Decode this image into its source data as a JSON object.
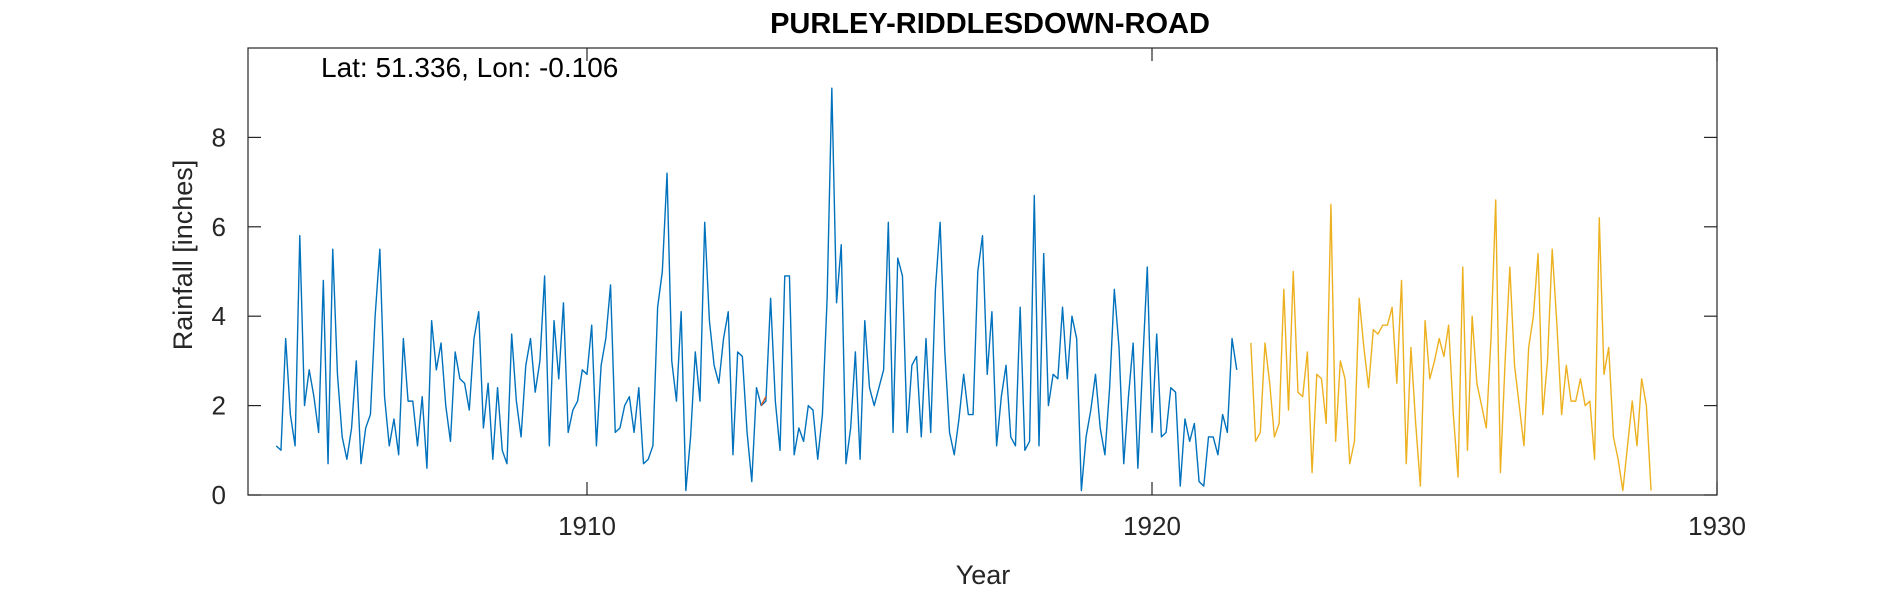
{
  "chart_data": {
    "type": "line",
    "title": "PURLEY-RIDDLESDOWN-ROAD",
    "annotation": "Lat: 51.336, Lon: -0.106",
    "xlabel": "Year",
    "ylabel": "Rainfall [inches]",
    "xlim": [
      1904,
      1930
    ],
    "ylim": [
      0,
      10
    ],
    "x_ticks": [
      1910,
      1920,
      1930
    ],
    "y_ticks": [
      0,
      2,
      4,
      6,
      8
    ],
    "grid": false,
    "colors": {
      "observed": "#0072BD",
      "extension": "#EDB120",
      "highlight": "#D95319",
      "axis": "#262626"
    },
    "series": [
      {
        "color": "#0072BD",
        "x_start": 1904.5,
        "x_step": 0.083333,
        "values": [
          1.1,
          1.0,
          3.5,
          1.8,
          1.1,
          5.8,
          2.0,
          2.8,
          2.2,
          1.4,
          4.8,
          0.7,
          5.5,
          2.7,
          1.3,
          0.8,
          1.5,
          3.0,
          0.7,
          1.5,
          1.8,
          4.0,
          5.5,
          2.2,
          1.1,
          1.7,
          0.9,
          3.5,
          2.1,
          2.1,
          1.1,
          2.2,
          0.6,
          3.9,
          2.8,
          3.4,
          2.0,
          1.2,
          3.2,
          2.6,
          2.5,
          1.9,
          3.5,
          4.1,
          1.5,
          2.5,
          0.8,
          2.4,
          1.0,
          0.7,
          3.6,
          2.1,
          1.3,
          2.9,
          3.5,
          2.3,
          3.0,
          4.9,
          1.1,
          3.9,
          2.6,
          4.3,
          1.4,
          1.9,
          2.1,
          2.8,
          2.7,
          3.8,
          1.1,
          2.9,
          3.5,
          4.7,
          1.4,
          1.5,
          2.0,
          2.2,
          1.4,
          2.4,
          0.7,
          0.8,
          1.1,
          4.2,
          5.0,
          7.2,
          3.0,
          2.1,
          4.1,
          0.1,
          1.3,
          3.2,
          2.1,
          6.1,
          3.9,
          2.9,
          2.5,
          3.5,
          4.1,
          0.9,
          3.2,
          3.1,
          1.4,
          0.3,
          2.4,
          2.0,
          2.1,
          4.4,
          2.1,
          1.0,
          4.9,
          4.9,
          0.9,
          1.5,
          1.2,
          2.0,
          1.9,
          0.8,
          1.8,
          4.4,
          9.1,
          4.3,
          5.6,
          0.7,
          1.5,
          3.2,
          0.8,
          3.9,
          2.4,
          2.0,
          2.4,
          2.8,
          6.1,
          1.4,
          5.3,
          4.9,
          1.4,
          2.9,
          3.1,
          1.3,
          3.5,
          1.4,
          4.6,
          6.1,
          3.2,
          1.4,
          0.9,
          1.7,
          2.7,
          1.8,
          1.8,
          5.0,
          5.8,
          2.7,
          4.1,
          1.1,
          2.2,
          2.9,
          1.3,
          1.1,
          4.2,
          1.0,
          1.2,
          6.7,
          1.1,
          5.4,
          2.0,
          2.7,
          2.6,
          4.2,
          2.6,
          4.0,
          3.5,
          0.1,
          1.3,
          1.9,
          2.7,
          1.5,
          0.9,
          2.4,
          4.6,
          3.3,
          0.7,
          2.2,
          3.4,
          0.6,
          2.9,
          5.1,
          1.4,
          3.6,
          1.3,
          1.4,
          2.4,
          2.3,
          0.2,
          1.7,
          1.2,
          1.6,
          0.3,
          0.2,
          1.3,
          1.3,
          0.9,
          1.8,
          1.4,
          3.5,
          2.8
        ]
      },
      {
        "color": "#EDB120",
        "x_start": 1921.75,
        "x_step": 0.083333,
        "values": [
          3.4,
          1.2,
          1.4,
          3.4,
          2.5,
          1.3,
          1.6,
          4.6,
          1.9,
          5.0,
          2.3,
          2.2,
          3.2,
          0.5,
          2.7,
          2.6,
          1.6,
          6.5,
          1.2,
          3.0,
          2.6,
          0.7,
          1.2,
          4.4,
          3.3,
          2.4,
          3.7,
          3.6,
          3.8,
          3.8,
          4.2,
          2.5,
          4.8,
          0.7,
          3.3,
          1.6,
          0.2,
          3.9,
          2.6,
          3.0,
          3.5,
          3.1,
          3.8,
          1.8,
          0.4,
          5.1,
          1.0,
          4.0,
          2.5,
          2.0,
          1.5,
          3.5,
          6.6,
          0.5,
          3.0,
          5.1,
          2.9,
          2.0,
          1.1,
          3.3,
          4.0,
          5.4,
          1.8,
          3.0,
          5.5,
          3.8,
          1.8,
          2.9,
          2.1,
          2.1,
          2.6,
          2.0,
          2.1,
          0.8,
          6.2,
          2.7,
          3.3,
          1.3,
          0.8,
          0.1,
          1.1,
          2.1,
          1.1,
          2.6,
          2.0,
          0.1
        ]
      },
      {
        "color": "#D95319",
        "x_start": 1913.083,
        "x_step": 0.083333,
        "values": [
          2.0,
          2.2
        ]
      }
    ]
  }
}
